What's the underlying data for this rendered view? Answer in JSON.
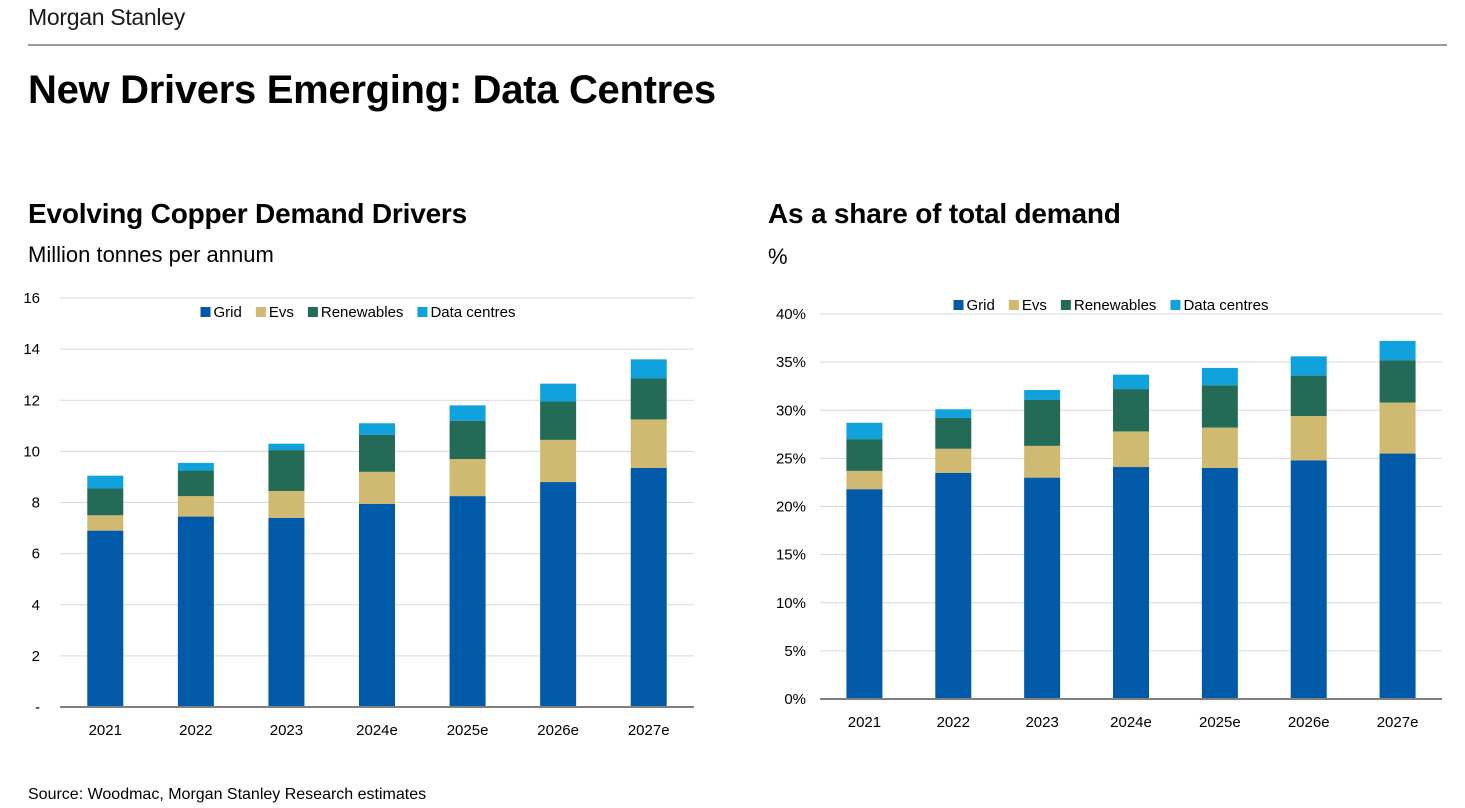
{
  "header": {
    "brand": "Morgan Stanley",
    "title": "New Drivers Emerging: Data Centres"
  },
  "footer": {
    "source": "Source: Woodmac, Morgan Stanley Research estimates"
  },
  "colors": {
    "grid": "#005AA8",
    "evs": "#D0BA72",
    "renewables": "#236B57",
    "data_centres": "#0FA2DC",
    "gridline": "#d9d9d9",
    "axis": "#808080"
  },
  "chart_data": [
    {
      "type": "bar",
      "stacked": true,
      "title": "Evolving Copper Demand Drivers",
      "subtitle": "Million tonnes per annum",
      "categories": [
        "2021",
        "2022",
        "2023",
        "2024e",
        "2025e",
        "2026e",
        "2027e"
      ],
      "series": [
        {
          "name": "Grid",
          "values": [
            6.9,
            7.45,
            7.4,
            7.95,
            8.25,
            8.8,
            9.35
          ]
        },
        {
          "name": "Evs",
          "values": [
            0.6,
            0.8,
            1.05,
            1.25,
            1.45,
            1.65,
            1.9
          ]
        },
        {
          "name": "Renewables",
          "values": [
            1.05,
            1.0,
            1.6,
            1.45,
            1.5,
            1.5,
            1.6
          ]
        },
        {
          "name": "Data centres",
          "values": [
            0.5,
            0.3,
            0.25,
            0.45,
            0.6,
            0.7,
            0.75
          ]
        }
      ],
      "ylim": [
        0,
        16
      ],
      "yticks": [
        0,
        2,
        4,
        6,
        8,
        10,
        12,
        14,
        16
      ],
      "ytick_labels": [
        "-",
        "2",
        "4",
        "6",
        "8",
        "10",
        "12",
        "14",
        "16"
      ],
      "legend": "top-center"
    },
    {
      "type": "bar",
      "stacked": true,
      "title": "As a share of total demand",
      "subtitle": "%",
      "categories": [
        "2021",
        "2022",
        "2023",
        "2024e",
        "2025e",
        "2026e",
        "2027e"
      ],
      "series": [
        {
          "name": "Grid",
          "values": [
            21.8,
            23.5,
            23.0,
            24.1,
            24.0,
            24.8,
            25.5
          ]
        },
        {
          "name": "Evs",
          "values": [
            1.9,
            2.5,
            3.3,
            3.7,
            4.2,
            4.6,
            5.3
          ]
        },
        {
          "name": "Renewables",
          "values": [
            3.3,
            3.2,
            4.8,
            4.4,
            4.4,
            4.2,
            4.4
          ]
        },
        {
          "name": "Data centres",
          "values": [
            1.7,
            0.9,
            1.0,
            1.5,
            1.8,
            2.0,
            2.0
          ]
        }
      ],
      "ylim": [
        0,
        40
      ],
      "yticks": [
        0,
        5,
        10,
        15,
        20,
        25,
        30,
        35,
        40
      ],
      "ytick_labels": [
        "0%",
        "5%",
        "10%",
        "15%",
        "20%",
        "25%",
        "30%",
        "35%",
        "40%"
      ],
      "legend": "top-center"
    }
  ]
}
